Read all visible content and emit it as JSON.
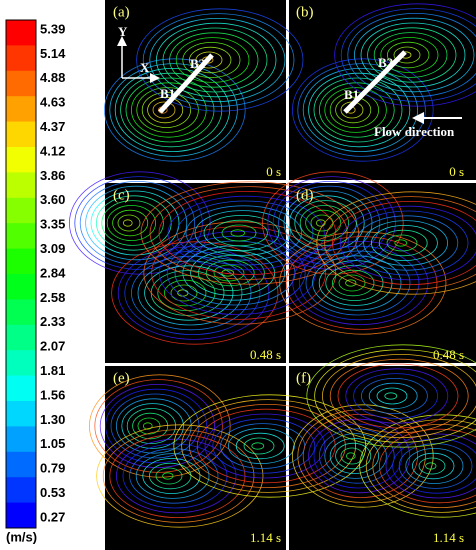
{
  "colorbar": {
    "labels": [
      "5.39",
      "5.14",
      "4.88",
      "4.63",
      "4.37",
      "4.12",
      "3.86",
      "3.60",
      "3.35",
      "3.09",
      "2.84",
      "2.58",
      "2.33",
      "2.07",
      "1.81",
      "1.56",
      "1.30",
      "1.05",
      "0.79",
      "0.53",
      "0.27"
    ],
    "unit": "(m/s)"
  },
  "panels": [
    {
      "label": "(a)",
      "time": "0 s",
      "axis_y": "Y",
      "axis_x": "X",
      "body_labels": [
        "B1",
        "B2"
      ]
    },
    {
      "label": "(b)",
      "time": "0 s",
      "body_labels": [
        "B1",
        "B2"
      ],
      "flow_label": "Flow direction"
    },
    {
      "label": "(c)",
      "time": "0.48 s"
    },
    {
      "label": "(d)",
      "time": "0.48 s"
    },
    {
      "label": "(e)",
      "time": "1.14 s"
    },
    {
      "label": "(f)",
      "time": "1.14 s"
    }
  ]
}
